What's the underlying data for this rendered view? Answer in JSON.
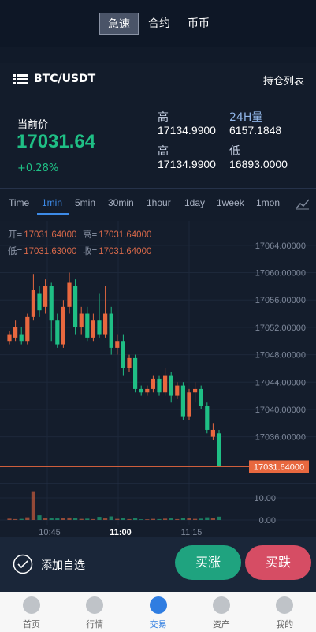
{
  "tabs": [
    "急速",
    "合约",
    "币币"
  ],
  "active_tab": 0,
  "header": {
    "symbol": "BTC/USDT",
    "positions": "持仓列表"
  },
  "ticker": {
    "price_label": "当前价",
    "price": "17031.64",
    "change": "+0.28%",
    "stats": [
      {
        "label": "高",
        "value": "17134.9900"
      },
      {
        "label": "24H量",
        "value": "6157.1848"
      },
      {
        "label": "高",
        "value": "17134.9900"
      },
      {
        "label": "低",
        "value": "16893.0000"
      }
    ]
  },
  "intervals": [
    "Time",
    "1min",
    "5min",
    "30min",
    "1hour",
    "1day",
    "1week",
    "1mon"
  ],
  "active_interval": 1,
  "kline": {
    "ohlc_text": [
      {
        "label": "开=",
        "value": "17031.64000"
      },
      {
        "label": "高=",
        "value": "17031.64000"
      },
      {
        "label": "低=",
        "value": "17031.63000"
      },
      {
        "label": "收=",
        "value": "17031.64000"
      }
    ],
    "ylim": [
      17029.5,
      17066.4
    ],
    "yticks": [
      {
        "value": 17064,
        "label": "17064.00000"
      },
      {
        "value": 17060,
        "label": "17060.00000"
      },
      {
        "value": 17056,
        "label": "17056.00000"
      },
      {
        "value": 17052,
        "label": "17052.00000"
      },
      {
        "value": 17048,
        "label": "17048.00000"
      },
      {
        "value": 17044,
        "label": "17044.00000"
      },
      {
        "value": 17040,
        "label": "17040.00000"
      },
      {
        "value": 17036,
        "label": "17036.00000"
      }
    ],
    "last_price": {
      "value": 17031.64,
      "label": "17031.64000"
    },
    "volume_ylim": [
      0,
      14
    ],
    "volume_ticks": [
      {
        "value": 10,
        "label": "10.00"
      },
      {
        "value": 0,
        "label": "0.00"
      }
    ],
    "xticks": [
      "10:45",
      "11:00",
      "11:15"
    ],
    "up_color": "#e8683f",
    "down_color": "#1fbf85",
    "candles": [
      {
        "open": 17050.0,
        "high": 17051.5,
        "low": 17049.5,
        "close": 17051.0,
        "volume": 0.6
      },
      {
        "open": 17050.5,
        "high": 17053,
        "low": 17050,
        "close": 17052.0,
        "volume": 0.4
      },
      {
        "open": 17051.0,
        "high": 17052,
        "low": 17049.5,
        "close": 17050.0,
        "volume": 0.5
      },
      {
        "open": 17050.0,
        "high": 17054,
        "low": 17049.5,
        "close": 17053.5,
        "volume": 1.2
      },
      {
        "open": 17053.5,
        "high": 17059.8,
        "low": 17053,
        "close": 17057.5,
        "volume": 13
      },
      {
        "open": 17057.0,
        "high": 17058,
        "low": 17053.5,
        "close": 17054.5,
        "volume": 2.1
      },
      {
        "open": 17055,
        "high": 17059,
        "low": 17054,
        "close": 17058,
        "volume": 0.8
      },
      {
        "open": 17058,
        "high": 17058.5,
        "low": 17050,
        "close": 17053,
        "volume": 1.0
      },
      {
        "open": 17053,
        "high": 17054,
        "low": 17049,
        "close": 17049.5,
        "volume": 0.7
      },
      {
        "open": 17049.5,
        "high": 17056,
        "low": 17049,
        "close": 17055,
        "volume": 0.9
      },
      {
        "open": 17055,
        "high": 17060,
        "low": 17054,
        "close": 17058.5,
        "volume": 1.1
      },
      {
        "open": 17058,
        "high": 17059,
        "low": 17051,
        "close": 17052,
        "volume": 0.8
      },
      {
        "open": 17052,
        "high": 17055,
        "low": 17051,
        "close": 17054,
        "volume": 0.5
      },
      {
        "open": 17054,
        "high": 17055,
        "low": 17050,
        "close": 17050.5,
        "volume": 0.6
      },
      {
        "open": 17050.5,
        "high": 17054,
        "low": 17050,
        "close": 17053,
        "volume": 0.4
      },
      {
        "open": 17053,
        "high": 17057,
        "low": 17050.5,
        "close": 17051,
        "volume": 1.4
      },
      {
        "open": 17051,
        "high": 17058,
        "low": 17050.5,
        "close": 17054,
        "volume": 0.7
      },
      {
        "open": 17054,
        "high": 17055,
        "low": 17048,
        "close": 17049,
        "volume": 1.6
      },
      {
        "open": 17049,
        "high": 17051,
        "low": 17048,
        "close": 17050,
        "volume": 0.5
      },
      {
        "open": 17050,
        "high": 17051,
        "low": 17045,
        "close": 17046,
        "volume": 0.9
      },
      {
        "open": 17046,
        "high": 17048,
        "low": 17045.5,
        "close": 17047.5,
        "volume": 0.4
      },
      {
        "open": 17047.5,
        "high": 17048,
        "low": 17042.5,
        "close": 17043,
        "volume": 0.8
      },
      {
        "open": 17043,
        "high": 17043.5,
        "low": 17042,
        "close": 17042.5,
        "volume": 0.3
      },
      {
        "open": 17042.5,
        "high": 17043.5,
        "low": 17042,
        "close": 17043,
        "volume": 0.3
      },
      {
        "open": 17043,
        "high": 17045,
        "low": 17042.5,
        "close": 17044.5,
        "volume": 0.5
      },
      {
        "open": 17044.5,
        "high": 17045,
        "low": 17042,
        "close": 17042.5,
        "volume": 0.4
      },
      {
        "open": 17042.5,
        "high": 17046,
        "low": 17042,
        "close": 17045,
        "volume": 0.6
      },
      {
        "open": 17045,
        "high": 17045.5,
        "low": 17041,
        "close": 17042,
        "volume": 0.7
      },
      {
        "open": 17042,
        "high": 17044,
        "low": 17041.5,
        "close": 17043.5,
        "volume": 0.4
      },
      {
        "open": 17043.5,
        "high": 17044,
        "low": 17038.5,
        "close": 17039,
        "volume": 1.0
      },
      {
        "open": 17039,
        "high": 17043,
        "low": 17038.5,
        "close": 17042.5,
        "volume": 0.8
      },
      {
        "open": 17042.5,
        "high": 17044,
        "low": 17041,
        "close": 17043,
        "volume": 0.5
      },
      {
        "open": 17043,
        "high": 17043.5,
        "low": 17040,
        "close": 17040.5,
        "volume": 0.6
      },
      {
        "open": 17040.5,
        "high": 17041,
        "low": 17036.5,
        "close": 17037,
        "volume": 1.2
      },
      {
        "open": 17036,
        "high": 17038,
        "low": 17035.5,
        "close": 17037,
        "volume": 0.9
      },
      {
        "open": 17036.5,
        "high": 17037,
        "low": 17031.6,
        "close": 17031.64,
        "volume": 1.5
      }
    ]
  },
  "actions": {
    "watch": "添加自选",
    "buy": "买涨",
    "sell": "买跌"
  },
  "nav": [
    "首页",
    "行情",
    "交易",
    "资产",
    "我的"
  ],
  "active_nav": 2
}
